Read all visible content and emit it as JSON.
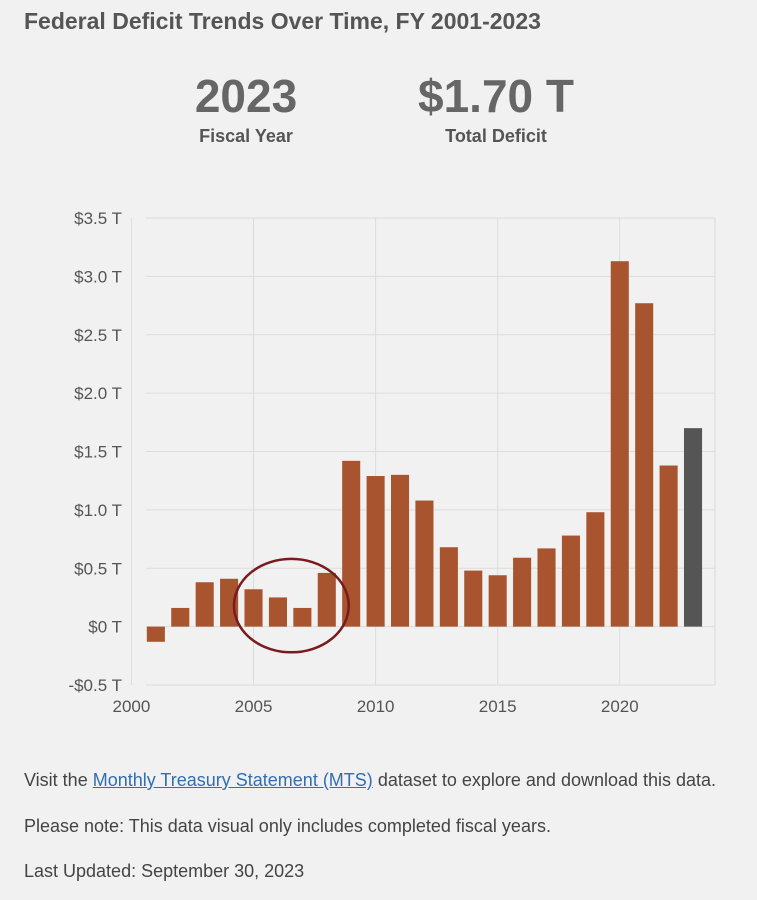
{
  "page": {
    "title": "Federal Deficit Trends Over Time, FY 2001-2023"
  },
  "stats": {
    "fiscal_year_value": "2023",
    "fiscal_year_label": "Fiscal Year",
    "total_deficit_value": "$1.70 T",
    "total_deficit_label": "Total Deficit"
  },
  "chart_data": {
    "type": "bar",
    "x": [
      2001,
      2002,
      2003,
      2004,
      2005,
      2006,
      2007,
      2008,
      2009,
      2010,
      2011,
      2012,
      2013,
      2014,
      2015,
      2016,
      2017,
      2018,
      2019,
      2020,
      2021,
      2022,
      2023
    ],
    "values": [
      -0.13,
      0.16,
      0.38,
      0.41,
      0.32,
      0.25,
      0.16,
      0.46,
      1.42,
      1.29,
      1.3,
      1.08,
      0.68,
      0.48,
      0.44,
      0.59,
      0.67,
      0.78,
      0.98,
      3.13,
      2.77,
      1.38,
      1.7
    ],
    "ylim": [
      -0.5,
      3.5
    ],
    "y_ticks": [
      {
        "value": 3.5,
        "label": "$3.5 T"
      },
      {
        "value": 3.0,
        "label": "$3.0 T"
      },
      {
        "value": 2.5,
        "label": "$2.5 T"
      },
      {
        "value": 2.0,
        "label": "$2.0 T"
      },
      {
        "value": 1.5,
        "label": "$1.5 T"
      },
      {
        "value": 1.0,
        "label": "$1.0 T"
      },
      {
        "value": 0.5,
        "label": "$0.5 T"
      },
      {
        "value": 0.0,
        "label": "$0 T"
      },
      {
        "value": -0.5,
        "label": "-$0.5 T"
      }
    ],
    "x_ticks": [
      {
        "value": 2000,
        "label": "2000"
      },
      {
        "value": 2005,
        "label": "2005"
      },
      {
        "value": 2010,
        "label": "2010"
      },
      {
        "value": 2015,
        "label": "2015"
      },
      {
        "value": 2020,
        "label": "2020"
      }
    ],
    "xlim": [
      1999.9,
      2023.9
    ],
    "grid": true,
    "bar_color": "#a8542f",
    "highlight_year": 2023,
    "highlight_color": "#555555",
    "annotation": {
      "shape": "ellipse",
      "x_range": [
        2004.2,
        2008.9
      ],
      "y_range": [
        -0.22,
        0.58
      ],
      "color": "#7a1b1f"
    }
  },
  "footer": {
    "mts_prefix": "Visit the ",
    "mts_link": "Monthly Treasury Statement (MTS)",
    "mts_suffix": " dataset to explore and download this data.",
    "note": "Please note: This data visual only includes completed fiscal years.",
    "last_updated": "Last Updated: September 30, 2023"
  }
}
